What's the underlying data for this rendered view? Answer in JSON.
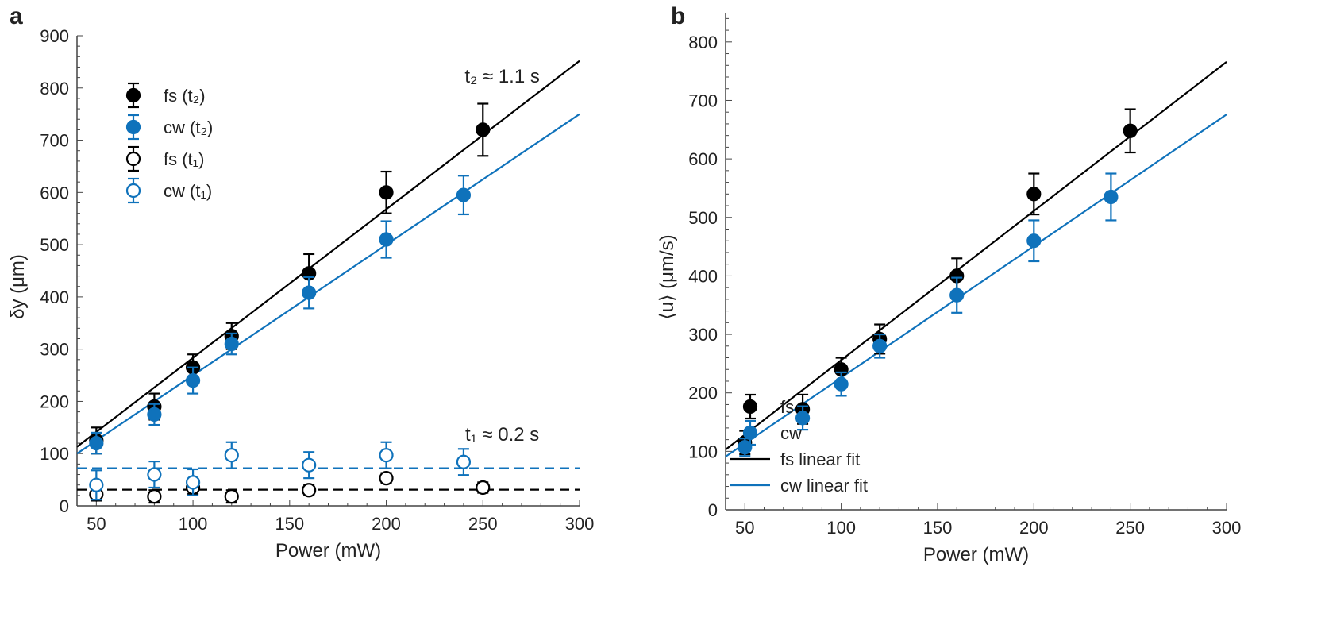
{
  "colors": {
    "fs": "#000000",
    "cw": "#0f72bb"
  },
  "chart_data": [
    {
      "panel_label": "a",
      "type": "scatter",
      "xlabel": "Power (mW)",
      "ylabel": "δy (μm)",
      "xlim": [
        40,
        300
      ],
      "ylim": [
        0,
        900
      ],
      "xticks": [
        50,
        100,
        150,
        200,
        250,
        300
      ],
      "yticks": [
        0,
        100,
        200,
        300,
        400,
        500,
        600,
        700,
        800,
        900
      ],
      "grid": false,
      "legend_position": "top-left",
      "annotations": [
        {
          "text": "t₂ ≈ 1.1 s",
          "x": 260,
          "y": 810
        },
        {
          "text": "t₁ ≈ 0.2 s",
          "x": 260,
          "y": 125
        }
      ],
      "series": [
        {
          "name": "fs (t₂)",
          "color": "fs",
          "marker": "filled",
          "x": [
            50,
            80,
            100,
            120,
            160,
            200,
            250
          ],
          "y": [
            125,
            190,
            265,
            325,
            445,
            600,
            720
          ],
          "err": [
            25,
            25,
            25,
            25,
            37,
            40,
            50
          ]
        },
        {
          "name": "cw (t₂)",
          "color": "cw",
          "marker": "filled",
          "x": [
            50,
            80,
            100,
            120,
            160,
            200,
            240
          ],
          "y": [
            120,
            175,
            240,
            310,
            408,
            510,
            595
          ],
          "err": [
            20,
            20,
            25,
            20,
            30,
            35,
            37
          ]
        },
        {
          "name": "fs (t₁)",
          "color": "fs",
          "marker": "open",
          "x": [
            50,
            80,
            100,
            120,
            160,
            200,
            250
          ],
          "y": [
            22,
            18,
            35,
            18,
            30,
            53,
            35
          ],
          "err": [
            12,
            12,
            12,
            12,
            10,
            10,
            10
          ]
        },
        {
          "name": "cw (t₁)",
          "color": "cw",
          "marker": "open",
          "x": [
            50,
            80,
            100,
            120,
            160,
            200,
            240
          ],
          "y": [
            40,
            60,
            45,
            97,
            78,
            97,
            84
          ],
          "err": [
            28,
            25,
            25,
            25,
            25,
            25,
            25
          ]
        }
      ],
      "lines": [
        {
          "color": "fs",
          "style": "solid",
          "x": [
            40,
            300
          ],
          "y": [
            113,
            852
          ]
        },
        {
          "color": "cw",
          "style": "solid",
          "x": [
            40,
            300
          ],
          "y": [
            100,
            750
          ]
        },
        {
          "color": "cw",
          "style": "dashed",
          "x": [
            40,
            300
          ],
          "y": [
            72,
            72
          ]
        },
        {
          "color": "fs",
          "style": "dashed",
          "x": [
            40,
            300
          ],
          "y": [
            31,
            31
          ]
        }
      ]
    },
    {
      "panel_label": "b",
      "type": "scatter",
      "xlabel": "Power (mW)",
      "ylabel": "⟨u⟩ (μm/s)",
      "xlim": [
        40,
        300
      ],
      "ylim": [
        0,
        850
      ],
      "xticks": [
        50,
        100,
        150,
        200,
        250,
        300
      ],
      "yticks": [
        0,
        100,
        200,
        300,
        400,
        500,
        600,
        700,
        800
      ],
      "grid": false,
      "legend_position": "bottom-right",
      "series": [
        {
          "name": "fs",
          "color": "fs",
          "marker": "filled",
          "x": [
            50,
            80,
            100,
            120,
            160,
            200,
            250
          ],
          "y": [
            115,
            172,
            240,
            292,
            400,
            540,
            648
          ],
          "err": [
            20,
            25,
            20,
            25,
            30,
            35,
            37
          ]
        },
        {
          "name": "cw",
          "color": "cw",
          "marker": "filled",
          "x": [
            50,
            80,
            100,
            120,
            160,
            200,
            240
          ],
          "y": [
            107,
            157,
            215,
            280,
            367,
            460,
            535
          ],
          "err": [
            15,
            20,
            20,
            20,
            30,
            35,
            40
          ]
        }
      ],
      "lines": [
        {
          "name": "fs linear fit",
          "color": "fs",
          "style": "solid",
          "x": [
            40,
            300
          ],
          "y": [
            103,
            766
          ]
        },
        {
          "name": "cw linear fit",
          "color": "cw",
          "style": "solid",
          "x": [
            40,
            300
          ],
          "y": [
            91,
            676
          ]
        }
      ]
    }
  ]
}
